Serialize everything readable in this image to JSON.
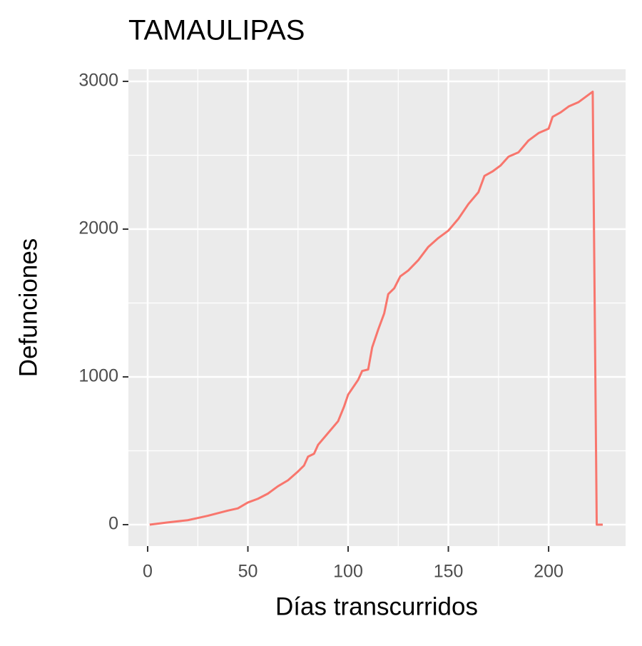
{
  "chart_data": {
    "type": "line",
    "title": "TAMAULIPAS",
    "x_label": "Días transcurridos",
    "y_label": "Defunciones",
    "x": [
      1,
      10,
      20,
      25,
      30,
      40,
      45,
      50,
      55,
      60,
      65,
      70,
      75,
      78,
      80,
      83,
      85,
      90,
      95,
      98,
      100,
      105,
      107,
      110,
      112,
      115,
      118,
      120,
      123,
      126,
      130,
      135,
      140,
      145,
      150,
      155,
      160,
      165,
      168,
      172,
      176,
      180,
      185,
      190,
      195,
      200,
      202,
      206,
      210,
      215,
      220,
      222,
      224,
      227
    ],
    "series": [
      {
        "name": "TAMAULIPAS",
        "color": "#F8766D",
        "values": [
          0,
          15,
          30,
          45,
          60,
          95,
          110,
          150,
          175,
          210,
          260,
          300,
          360,
          400,
          460,
          480,
          540,
          620,
          700,
          800,
          880,
          980,
          1040,
          1050,
          1200,
          1320,
          1430,
          1560,
          1600,
          1680,
          1720,
          1790,
          1880,
          1940,
          1990,
          2070,
          2170,
          2250,
          2360,
          2390,
          2430,
          2490,
          2520,
          2600,
          2650,
          2680,
          2760,
          2790,
          2830,
          2860,
          2910,
          2930,
          0,
          0
        ]
      }
    ],
    "xlim": [
      -9.6,
      238.4
    ],
    "xticks": [
      0,
      50,
      100,
      150,
      200
    ],
    "ylim": [
      -145,
      3082
    ],
    "yticks": [
      0,
      1000,
      2000,
      3000
    ],
    "grid": true
  }
}
